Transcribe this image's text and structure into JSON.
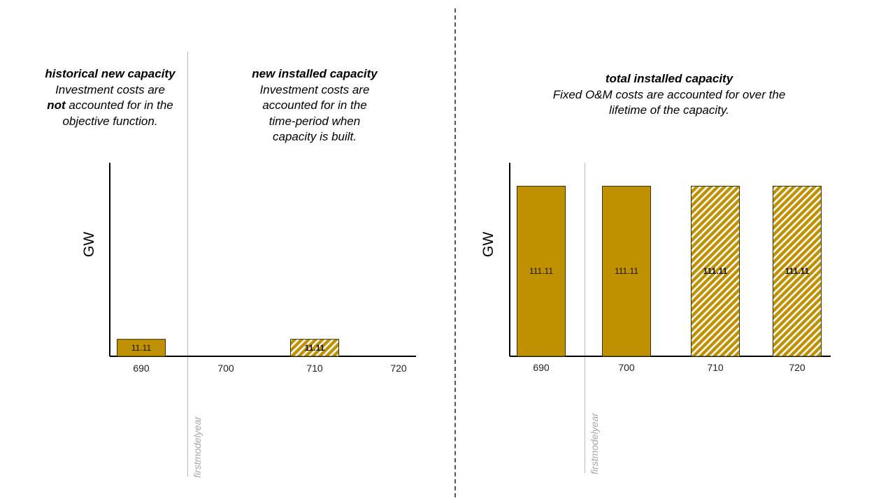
{
  "notes": {
    "historical": {
      "heading": "historical new capacity",
      "line1": "Investment costs are",
      "line2_bold": "not",
      "line2_rest": " accounted for in the",
      "line3": "objective function."
    },
    "new_installed": {
      "heading": "new installed capacity",
      "line1": "Investment costs are",
      "line2": "accounted for in the",
      "line3": "time-period when",
      "line4": "capacity is built."
    },
    "total_installed": {
      "heading": "total installed capacity",
      "line1": "Fixed O&M costs are accounted for over the",
      "line2": "lifetime of the capacity."
    }
  },
  "first_model_year_label": "firstmodelyear",
  "colors": {
    "bar_fill": "#bf9000",
    "bar_stroke": "#3a3000",
    "hatch_stripe": "#ffffff",
    "divider": "#555555",
    "first_model_year_line": "#b9b9b9"
  },
  "chart_data": [
    {
      "type": "bar",
      "ylabel": "GW",
      "categories": [
        "690",
        "700",
        "710",
        "720"
      ],
      "values": [
        11.11,
        null,
        11.11,
        null
      ],
      "labels": [
        "11.11",
        "",
        "11.11",
        ""
      ],
      "patterns": [
        "solid",
        "none",
        "hatched",
        "none"
      ],
      "ylim": [
        0,
        120
      ]
    },
    {
      "type": "bar",
      "ylabel": "GW",
      "categories": [
        "690",
        "700",
        "710",
        "720"
      ],
      "values": [
        111.11,
        111.11,
        111.11,
        111.11
      ],
      "labels": [
        "111.11",
        "111.11",
        "111.11",
        "111.11"
      ],
      "patterns": [
        "solid",
        "solid",
        "hatched",
        "hatched"
      ],
      "ylim": [
        0,
        120
      ]
    }
  ]
}
